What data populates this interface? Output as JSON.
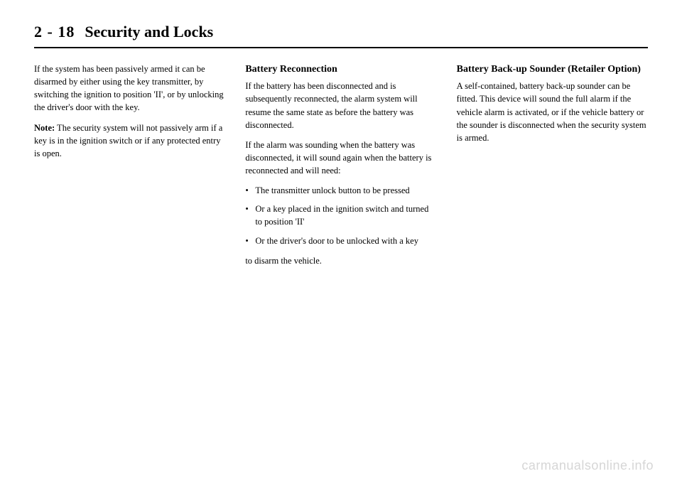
{
  "header": {
    "page_number": "2 - 18",
    "section_title": "Security and Locks"
  },
  "column1": {
    "para1": "If the system has been passively armed it can be disarmed by either using the key transmitter, by switching the ignition to position 'II', or by unlocking the driver's door with the key.",
    "note_label": "Note:",
    "note_text": " The security system will not passively arm if a key is in the ignition switch or if any protected entry is open."
  },
  "column2": {
    "heading": "Battery Reconnection",
    "para1": "If the battery has been disconnected and is subsequently reconnected, the alarm system will resume the same state as before the battery was disconnected.",
    "para2": "If the alarm was sounding when the battery was disconnected, it will sound again when the battery is reconnected and will need:",
    "bullets": [
      "The transmitter unlock button to be pressed",
      "Or a key placed in the ignition switch and turned to position 'II'",
      "Or the driver's door to be unlocked with a key"
    ],
    "para3": "to disarm the vehicle."
  },
  "column3": {
    "heading": "Battery Back-up Sounder (Retailer Option)",
    "para1": "A self-contained, battery back-up sounder can be fitted. This device will sound the full alarm if the vehicle alarm is activated, or if the vehicle battery or the sounder is disconnected when the security system is armed."
  },
  "watermark": "carmanualsonline.info"
}
